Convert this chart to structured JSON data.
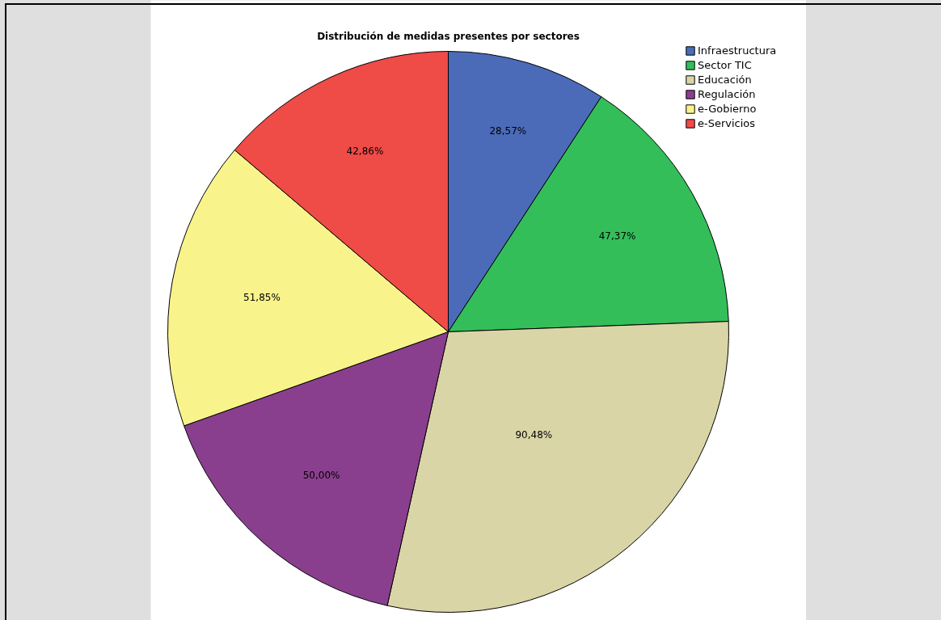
{
  "chart_data": {
    "type": "pie",
    "title": "Distribución de medidas presentes por sectores",
    "categories": [
      "Infraestructura",
      "Sector TIC",
      "Educación",
      "Regulación",
      "e-Gobierno",
      "e-Servicios"
    ],
    "values": [
      28.57,
      47.37,
      90.48,
      50.0,
      51.85,
      42.86
    ],
    "colors": [
      "#4b6bb8",
      "#33be5a",
      "#d9d5a7",
      "#8a3f8e",
      "#f9f38b",
      "#ef4b47"
    ],
    "value_labels": [
      "28,57%",
      "47,37%",
      "90,48%",
      "50,00%",
      "51,85%",
      "42,86%"
    ],
    "legend": "top right"
  }
}
